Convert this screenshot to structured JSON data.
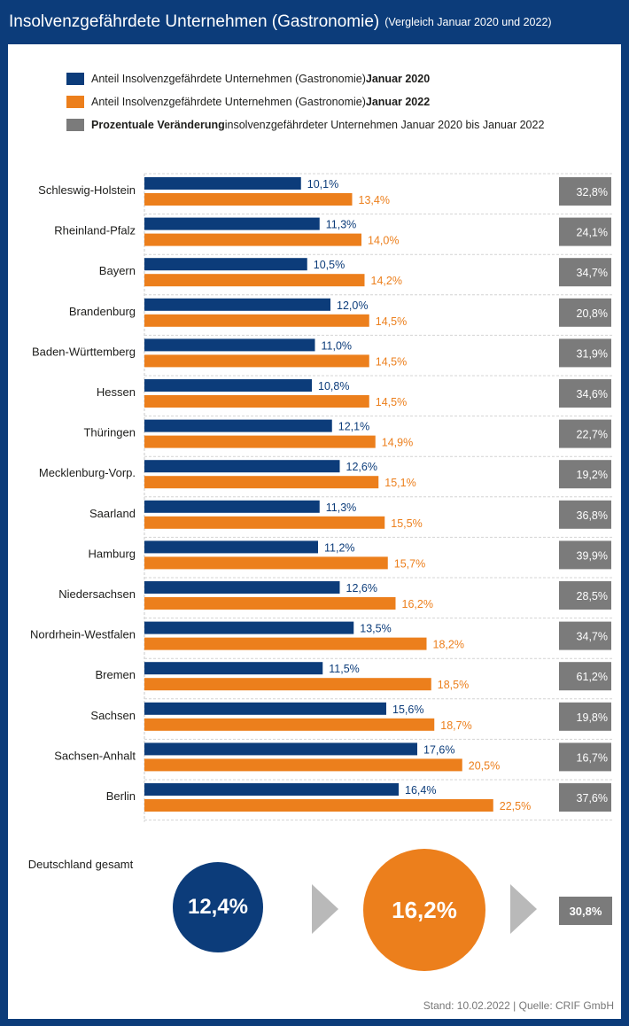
{
  "header": {
    "title": "Insolvenzgefährdete Unternehmen (Gastronomie)",
    "subtitle": "(Vergleich Januar 2020 und 2022)"
  },
  "legend": [
    {
      "text": "Anteil Insolvenzgefährdete Unternehmen (Gastronomie) ",
      "bold": "Januar 2020",
      "color": "#0c3c7a"
    },
    {
      "text": "Anteil Insolvenzgefährdete Unternehmen (Gastronomie) ",
      "bold": "Januar 2022",
      "color": "#ec7f1c"
    },
    {
      "bold_first": "Prozentuale Veränderung",
      "text": " insolvenzgefährdeter Unternehmen Januar 2020 bis Januar 2022",
      "color": "#7b7b7b"
    }
  ],
  "chart_data": {
    "type": "bar",
    "orientation": "horizontal",
    "categories": [
      "Schleswig-Holstein",
      "Rheinland-Pfalz",
      "Bayern",
      "Brandenburg",
      "Baden-Württemberg",
      "Hessen",
      "Thüringen",
      "Mecklenburg-Vorp.",
      "Saarland",
      "Hamburg",
      "Niedersachsen",
      "Nordrhein-Westfalen",
      "Bremen",
      "Sachsen",
      "Sachsen-Anhalt",
      "Berlin"
    ],
    "series": [
      {
        "name": "Januar 2020",
        "color": "#0c3c7a",
        "values": [
          10.1,
          11.3,
          10.5,
          12.0,
          11.0,
          10.8,
          12.1,
          12.6,
          11.3,
          11.2,
          12.6,
          13.5,
          11.5,
          15.6,
          17.6,
          16.4
        ],
        "labels": [
          "10,1%",
          "11,3%",
          "10,5%",
          "12,0%",
          "11,0%",
          "10,8%",
          "12,1%",
          "12,6%",
          "11,3%",
          "11,2%",
          "12,6%",
          "13,5%",
          "11,5%",
          "15,6%",
          "17,6%",
          "16,4%"
        ]
      },
      {
        "name": "Januar 2022",
        "color": "#ec7f1c",
        "values": [
          13.4,
          14.0,
          14.2,
          14.5,
          14.5,
          14.5,
          14.9,
          15.1,
          15.5,
          15.7,
          16.2,
          18.2,
          18.5,
          18.7,
          20.5,
          22.5
        ],
        "labels": [
          "13,4%",
          "14,0%",
          "14,2%",
          "14,5%",
          "14,5%",
          "14,5%",
          "14,9%",
          "15,1%",
          "15,5%",
          "15,7%",
          "16,2%",
          "18,2%",
          "18,5%",
          "18,7%",
          "20,5%",
          "22,5%"
        ]
      }
    ],
    "change": {
      "name": "Prozentuale Veränderung",
      "color": "#7b7b7b",
      "values": [
        32.8,
        24.1,
        34.7,
        20.8,
        31.9,
        34.6,
        22.7,
        19.2,
        36.8,
        39.9,
        28.5,
        34.7,
        61.2,
        19.8,
        16.7,
        37.6
      ],
      "labels": [
        "32,8%",
        "24,1%",
        "34,7%",
        "20,8%",
        "31,9%",
        "34,6%",
        "22,7%",
        "19,2%",
        "36,8%",
        "39,9%",
        "28,5%",
        "34,7%",
        "61,2%",
        "19,8%",
        "16,7%",
        "37,6%"
      ]
    },
    "xlim": [
      0,
      27
    ]
  },
  "germany": {
    "label": "Deutschland gesamt",
    "value_2020": "12,4%",
    "value_2022": "16,2%",
    "change": "30,8%"
  },
  "colors": {
    "navy": "#0c3c7a",
    "orange": "#ec7f1c",
    "gray": "#7b7b7b",
    "arrow": "#b9b9b9"
  },
  "footer": "Stand: 10.02.2022 | Quelle: CRIF GmbH"
}
